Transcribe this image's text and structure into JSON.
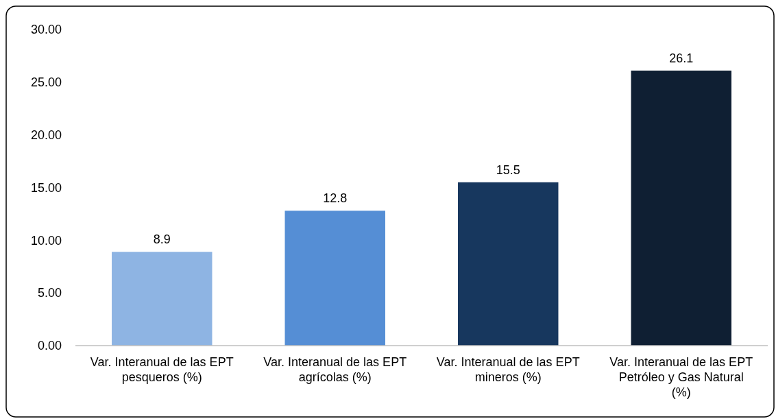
{
  "chart_data": {
    "type": "bar",
    "categories": [
      "Var. Interanual de las EPT pesqueros (%)",
      "Var. Interanual de las EPT agrícolas (%)",
      "Var. Interanual de las EPT mineros (%)",
      "Var. Interanual de las EPT Petróleo y Gas Natural (%)"
    ],
    "values": [
      8.9,
      12.8,
      15.5,
      26.1
    ],
    "colors": [
      "#8eb4e3",
      "#558ed5",
      "#17375e",
      "#0f1f33"
    ],
    "ylim": [
      0,
      30
    ],
    "yticks": [
      {
        "value": 0,
        "label": "0.00"
      },
      {
        "value": 5,
        "label": "5.00"
      },
      {
        "value": 10,
        "label": "10.00"
      },
      {
        "value": 15,
        "label": "15.00"
      },
      {
        "value": 20,
        "label": "20.00"
      },
      {
        "value": 25,
        "label": "25.00"
      },
      {
        "value": 30,
        "label": "30.00"
      }
    ],
    "data_labels": true,
    "grid": false
  }
}
